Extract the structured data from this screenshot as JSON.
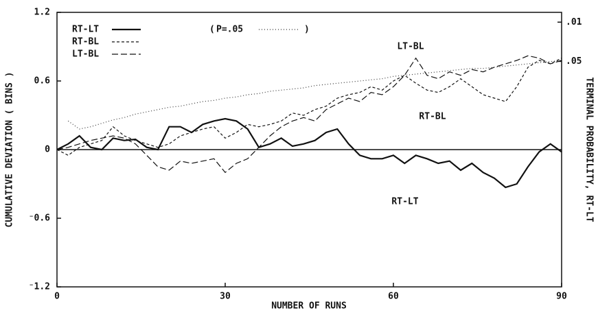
{
  "chart_data": {
    "type": "line",
    "x_label": "NUMBER OF RUNS",
    "y_label": "CUMULATIVE DEVIATION ( BINS )",
    "y2_label": "TERMINAL PROBABILITY,  RT-LT",
    "x": [
      0,
      2,
      4,
      6,
      8,
      10,
      12,
      14,
      16,
      18,
      20,
      22,
      24,
      26,
      28,
      30,
      32,
      34,
      36,
      38,
      40,
      42,
      44,
      46,
      48,
      50,
      52,
      54,
      56,
      58,
      60,
      62,
      64,
      66,
      68,
      70,
      72,
      74,
      76,
      78,
      80,
      82,
      84,
      86,
      88,
      90
    ],
    "xlim": [
      0,
      90
    ],
    "xticks": [
      0,
      30,
      60,
      90
    ],
    "ylim": [
      -1.2,
      1.2
    ],
    "yticks": [
      {
        "value": -1.2,
        "label": "⁻1.2"
      },
      {
        "value": -0.6,
        "label": "⁻0.6"
      },
      0,
      0.6,
      1.2
    ],
    "y2lim": [
      0.28,
      0
    ],
    "y2ticks": [
      {
        "value": 0.01,
        "label": ".01"
      },
      {
        "value": 0.05,
        "label": ".05"
      }
    ],
    "series": [
      {
        "name": "RT-LT",
        "color": "#111",
        "dash": "none",
        "width": 2.2,
        "values": [
          0,
          0.05,
          0.12,
          0.02,
          0,
          0.1,
          0.08,
          0.09,
          0.02,
          0,
          0.2,
          0.2,
          0.15,
          0.22,
          0.25,
          0.27,
          0.25,
          0.18,
          0.02,
          0.05,
          0.1,
          0.03,
          0.05,
          0.08,
          0.15,
          0.18,
          0.05,
          -0.05,
          -0.08,
          -0.08,
          -0.05,
          -0.12,
          -0.05,
          -0.08,
          -0.12,
          -0.1,
          -0.18,
          -0.12,
          -0.2,
          -0.25,
          -0.33,
          -0.3,
          -0.15,
          -0.02,
          0.05,
          -0.02
        ]
      },
      {
        "name": "RT-BL",
        "color": "#111",
        "dash": "4 3",
        "width": 1.2,
        "values": [
          0,
          -0.05,
          0.02,
          0.05,
          0.08,
          0.2,
          0.12,
          0.08,
          0.05,
          0.02,
          0.05,
          0.12,
          0.15,
          0.18,
          0.2,
          0.1,
          0.15,
          0.22,
          0.2,
          0.22,
          0.25,
          0.32,
          0.3,
          0.35,
          0.38,
          0.45,
          0.48,
          0.5,
          0.55,
          0.52,
          0.6,
          0.65,
          0.58,
          0.52,
          0.5,
          0.55,
          0.62,
          0.55,
          0.48,
          0.45,
          0.42,
          0.55,
          0.72,
          0.78,
          0.75,
          0.8
        ]
      },
      {
        "name": "LT-BL",
        "color": "#111",
        "dash": "9 4",
        "width": 1.2,
        "values": [
          0,
          0.02,
          0.05,
          0.08,
          0.1,
          0.12,
          0.1,
          0.05,
          -0.05,
          -0.15,
          -0.18,
          -0.1,
          -0.12,
          -0.1,
          -0.08,
          -0.2,
          -0.12,
          -0.08,
          0.02,
          0.12,
          0.2,
          0.25,
          0.28,
          0.25,
          0.35,
          0.4,
          0.45,
          0.42,
          0.5,
          0.48,
          0.55,
          0.65,
          0.8,
          0.65,
          0.62,
          0.68,
          0.65,
          0.7,
          0.68,
          0.72,
          0.75,
          0.78,
          0.82,
          0.8,
          0.75,
          0.78
        ]
      },
      {
        "name": "P=.05",
        "color": "#333",
        "dash": "1 3",
        "width": 1.2,
        "values": [
          null,
          0.25,
          0.18,
          0.2,
          0.23,
          0.26,
          0.28,
          0.31,
          0.33,
          0.35,
          0.37,
          0.38,
          0.4,
          0.42,
          0.43,
          0.45,
          0.46,
          0.48,
          0.49,
          0.51,
          0.52,
          0.53,
          0.54,
          0.56,
          0.57,
          0.58,
          0.59,
          0.6,
          0.61,
          0.62,
          0.64,
          0.65,
          0.66,
          0.67,
          0.68,
          0.69,
          0.7,
          0.71,
          0.71,
          0.72,
          0.73,
          0.74,
          0.75,
          0.76,
          0.77,
          0.78
        ]
      }
    ],
    "annotations": [
      "LT-BL",
      "RT-BL",
      "RT-LT"
    ]
  }
}
